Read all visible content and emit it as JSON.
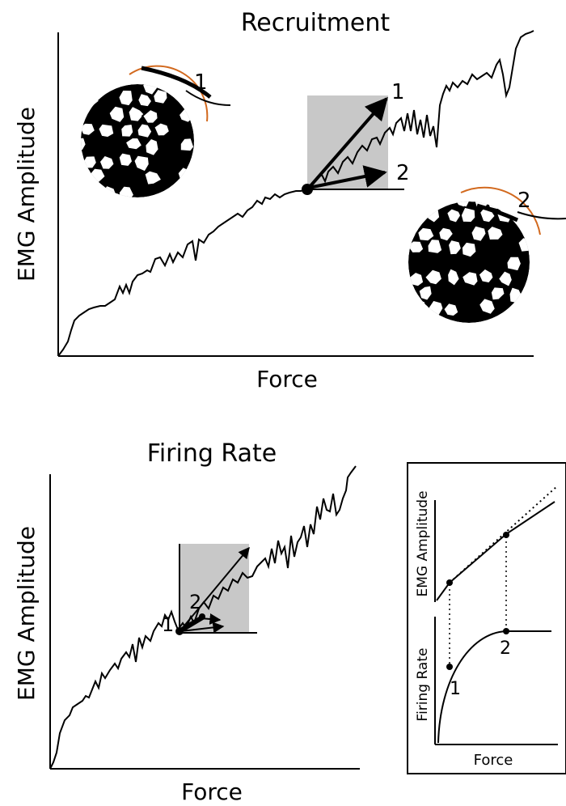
{
  "top_panel": {
    "title": "Recruitment",
    "xlabel": "Force",
    "ylabel": "EMG Amplitude",
    "arrow_1_label": "1",
    "arrow_2_label": "2",
    "muscle_left_label": "1",
    "muscle_right_label": "2"
  },
  "bottom_panel": {
    "title": "Firing Rate",
    "xlabel": "Force",
    "ylabel": "EMG Amplitude",
    "label_1": "1",
    "label_2": "2"
  },
  "inset": {
    "top_ylabel": "EMG Amplitude",
    "bottom_ylabel": "Firing Rate",
    "xlabel": "Force",
    "label_1": "1",
    "label_2": "2"
  },
  "colors": {
    "ink": "#000000",
    "shade": "#c8c8c8",
    "fiber_outline": "#d2691e"
  }
}
